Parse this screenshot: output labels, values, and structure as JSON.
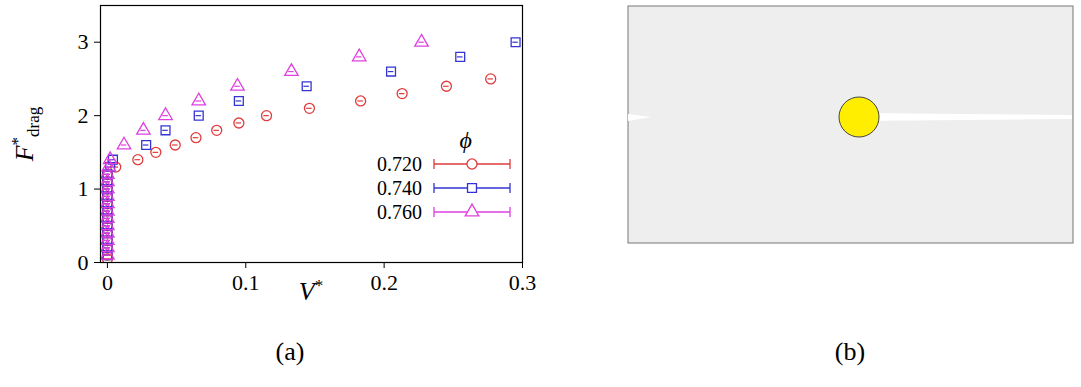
{
  "chart_data": {
    "type": "scatter",
    "panel_label": "(a)",
    "xlabel": {
      "base": "V",
      "sup": "*"
    },
    "ylabel": {
      "base": "F",
      "sup": "*",
      "sub": "drag"
    },
    "xlim": [
      -0.005,
      0.3
    ],
    "xticks": [
      0,
      0.1,
      0.2,
      0.3
    ],
    "ylim": [
      0,
      3.5
    ],
    "yticks": [
      0,
      1,
      2,
      3
    ],
    "legend": "lower right",
    "legend_title": "ϕ",
    "series": [
      {
        "name": "0.720",
        "color": "#e03c3c",
        "marker": "circle",
        "x": [
          0,
          0,
          0,
          0,
          0,
          0,
          0,
          0,
          0,
          0,
          0,
          0,
          0,
          0.006,
          0.022,
          0.035,
          0.049,
          0.064,
          0.079,
          0.095,
          0.115,
          0.146,
          0.183,
          0.213,
          0.245,
          0.277
        ],
        "values": [
          0.05,
          0.1,
          0.2,
          0.3,
          0.4,
          0.5,
          0.6,
          0.7,
          0.8,
          0.9,
          1.0,
          1.1,
          1.2,
          1.3,
          1.4,
          1.5,
          1.6,
          1.7,
          1.8,
          1.9,
          2.0,
          2.1,
          2.2,
          2.3,
          2.4,
          2.5
        ],
        "x_errors": [
          0.002,
          0.002,
          0.002,
          0.002,
          0.002,
          0.002,
          0.002,
          0.002,
          0.002,
          0.002,
          0.002,
          0.002,
          0.002,
          0.002,
          0.002,
          0.002,
          0.002,
          0.002,
          0.002,
          0.002,
          0.002,
          0.002,
          0.002,
          0.002,
          0.002,
          0.002
        ]
      },
      {
        "name": "0.740",
        "color": "#3434d4",
        "marker": "square",
        "x": [
          0,
          0,
          0,
          0,
          0,
          0,
          0,
          0,
          0,
          0,
          0,
          0,
          0.002,
          0.004,
          0.028,
          0.042,
          0.066,
          0.095,
          0.144,
          0.205,
          0.255,
          0.295
        ],
        "values": [
          0.1,
          0.2,
          0.3,
          0.4,
          0.5,
          0.6,
          0.7,
          0.8,
          0.9,
          1.0,
          1.1,
          1.2,
          1.3,
          1.4,
          1.6,
          1.8,
          2.0,
          2.2,
          2.4,
          2.6,
          2.8,
          3.0
        ],
        "x_errors": [
          0.002,
          0.002,
          0.002,
          0.002,
          0.002,
          0.002,
          0.002,
          0.002,
          0.002,
          0.002,
          0.002,
          0.002,
          0.002,
          0.002,
          0.002,
          0.002,
          0.002,
          0.002,
          0.002,
          0.002,
          0.002,
          0.002
        ]
      },
      {
        "name": "0.760",
        "color": "#e040e0",
        "marker": "triangle",
        "x": [
          0,
          0,
          0,
          0,
          0,
          0,
          0,
          0,
          0,
          0,
          0,
          0,
          0.001,
          0.002,
          0.012,
          0.026,
          0.042,
          0.066,
          0.094,
          0.133,
          0.182,
          0.227
        ],
        "values": [
          0.1,
          0.2,
          0.3,
          0.4,
          0.5,
          0.6,
          0.7,
          0.8,
          0.9,
          1.0,
          1.1,
          1.2,
          1.3,
          1.4,
          1.6,
          1.8,
          2.0,
          2.2,
          2.4,
          2.6,
          2.8,
          3.0
        ],
        "x_errors": [
          0.002,
          0.002,
          0.002,
          0.002,
          0.002,
          0.002,
          0.002,
          0.002,
          0.002,
          0.002,
          0.002,
          0.002,
          0.002,
          0.002,
          0.002,
          0.002,
          0.002,
          0.002,
          0.002,
          0.002,
          0.002,
          0.002
        ]
      }
    ]
  },
  "image_panel": {
    "panel_label": "(b)"
  }
}
